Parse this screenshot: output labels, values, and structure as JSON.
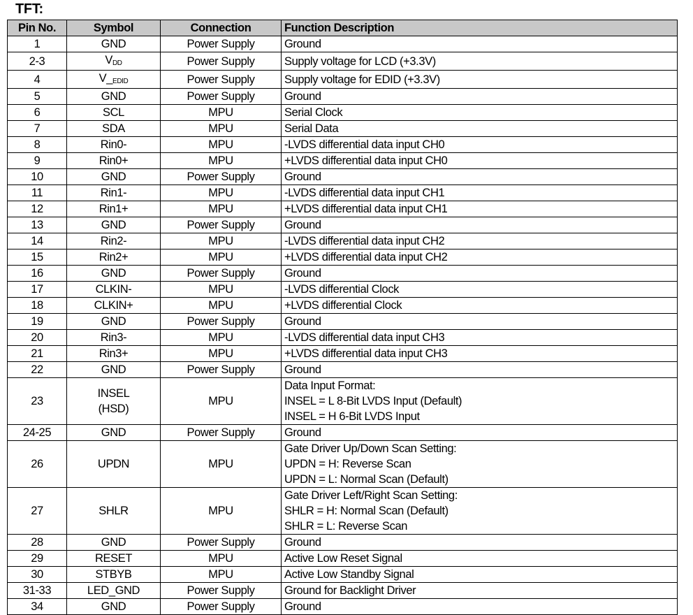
{
  "title": "TFT:",
  "headers": [
    "Pin No.",
    "Symbol",
    "Connection",
    "Function Description"
  ],
  "rows": [
    {
      "pin": "1",
      "symbol": "GND",
      "connection": "Power Supply",
      "description": [
        "Ground"
      ]
    },
    {
      "pin": "2-3",
      "symbol": "V",
      "symbol_sub": "DD",
      "connection": "Power Supply",
      "description": [
        "Supply voltage for LCD (+3.3V)"
      ]
    },
    {
      "pin": "4",
      "symbol": "V_",
      "symbol_sub": "EDID",
      "connection": "Power Supply",
      "description": [
        "Supply voltage for EDID (+3.3V)"
      ]
    },
    {
      "pin": "5",
      "symbol": "GND",
      "connection": "Power Supply",
      "description": [
        "Ground"
      ]
    },
    {
      "pin": "6",
      "symbol": "SCL",
      "connection": "MPU",
      "description": [
        "Serial Clock"
      ]
    },
    {
      "pin": "7",
      "symbol": "SDA",
      "connection": "MPU",
      "description": [
        "Serial Data"
      ]
    },
    {
      "pin": "8",
      "symbol": "Rin0-",
      "connection": "MPU",
      "description": [
        "-LVDS differential data input CH0"
      ]
    },
    {
      "pin": "9",
      "symbol": "Rin0+",
      "connection": "MPU",
      "description": [
        "+LVDS differential data input CH0"
      ]
    },
    {
      "pin": "10",
      "symbol": "GND",
      "connection": "Power Supply",
      "description": [
        "Ground"
      ]
    },
    {
      "pin": "11",
      "symbol": "Rin1-",
      "connection": "MPU",
      "description": [
        "-LVDS differential data input CH1"
      ]
    },
    {
      "pin": "12",
      "symbol": "Rin1+",
      "connection": "MPU",
      "description": [
        "+LVDS differential data input CH1"
      ]
    },
    {
      "pin": "13",
      "symbol": "GND",
      "connection": "Power Supply",
      "description": [
        "Ground"
      ]
    },
    {
      "pin": "14",
      "symbol": "Rin2-",
      "connection": "MPU",
      "description": [
        "-LVDS differential data input CH2"
      ]
    },
    {
      "pin": "15",
      "symbol": "Rin2+",
      "connection": "MPU",
      "description": [
        "+LVDS differential data input CH2"
      ]
    },
    {
      "pin": "16",
      "symbol": "GND",
      "connection": "Power Supply",
      "description": [
        "Ground"
      ]
    },
    {
      "pin": "17",
      "symbol": "CLKIN-",
      "connection": "MPU",
      "description": [
        "-LVDS differential Clock"
      ]
    },
    {
      "pin": "18",
      "symbol": "CLKIN+",
      "connection": "MPU",
      "description": [
        "+LVDS differential Clock"
      ]
    },
    {
      "pin": "19",
      "symbol": "GND",
      "connection": "Power Supply",
      "description": [
        "Ground"
      ]
    },
    {
      "pin": "20",
      "symbol": "Rin3-",
      "connection": "MPU",
      "description": [
        "-LVDS differential data input CH3"
      ]
    },
    {
      "pin": "21",
      "symbol": "Rin3+",
      "connection": "MPU",
      "description": [
        "+LVDS differential data input CH3"
      ]
    },
    {
      "pin": "22",
      "symbol": "GND",
      "connection": "Power Supply",
      "description": [
        "Ground"
      ]
    },
    {
      "pin": "23",
      "symbol": "INSEL",
      "symbol_line2": "(HSD)",
      "connection": "MPU",
      "description": [
        "Data Input Format:",
        "INSEL = L 8-Bit LVDS Input (Default)",
        "INSEL = H 6-Bit LVDS Input"
      ]
    },
    {
      "pin": "24-25",
      "symbol": "GND",
      "connection": "Power Supply",
      "description": [
        "Ground"
      ]
    },
    {
      "pin": "26",
      "symbol": "UPDN",
      "connection": "MPU",
      "description": [
        "Gate Driver Up/Down Scan Setting:",
        "UPDN = H: Reverse Scan",
        "UPDN = L: Normal Scan (Default)"
      ]
    },
    {
      "pin": "27",
      "symbol": "SHLR",
      "connection": "MPU",
      "description": [
        "Gate Driver Left/Right Scan Setting:",
        "SHLR = H: Normal Scan (Default)",
        "SHLR = L: Reverse Scan"
      ]
    },
    {
      "pin": "28",
      "symbol": "GND",
      "connection": "Power Supply",
      "description": [
        "Ground"
      ]
    },
    {
      "pin": "29",
      "symbol": "RESET",
      "connection": "MPU",
      "description": [
        "Active Low Reset Signal"
      ]
    },
    {
      "pin": "30",
      "symbol": "STBYB",
      "connection": "MPU",
      "description": [
        "Active Low Standby Signal"
      ]
    },
    {
      "pin": "31-33",
      "symbol": "LED_GND",
      "connection": "Power Supply",
      "description": [
        "Ground for Backlight Driver"
      ]
    },
    {
      "pin": "34",
      "symbol": "GND",
      "connection": "Power Supply",
      "description": [
        "Ground"
      ]
    }
  ]
}
